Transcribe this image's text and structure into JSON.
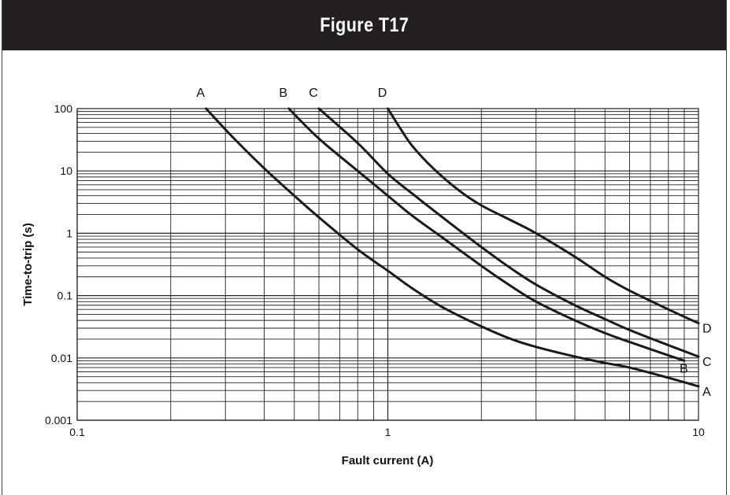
{
  "header": {
    "title": "Figure T17",
    "background": "#231f20"
  },
  "chart_data": {
    "type": "line",
    "xscale": "log",
    "yscale": "log",
    "xlim": [
      0.1,
      10
    ],
    "ylim": [
      0.001,
      100
    ],
    "xlabel": "Fault current (A)",
    "ylabel": "Time-to-trip (s)",
    "x_ticks": [
      0.1,
      1,
      10
    ],
    "x_tick_labels": [
      "0.1",
      "1",
      "10"
    ],
    "y_ticks": [
      0.001,
      0.01,
      0.1,
      1,
      10,
      100
    ],
    "y_tick_labels": [
      "0.001",
      "0.01",
      "0.1",
      "1",
      "10",
      "100"
    ],
    "grid": true,
    "series": [
      {
        "name": "A",
        "x": [
          0.26,
          0.32,
          0.4,
          0.5,
          0.6,
          0.8,
          1.0,
          1.2,
          1.5,
          2.0,
          2.5,
          3,
          4,
          5,
          6,
          8,
          10
        ],
        "y": [
          100,
          33,
          11,
          4,
          1.8,
          0.55,
          0.25,
          0.13,
          0.065,
          0.032,
          0.02,
          0.015,
          0.0105,
          0.0083,
          0.007,
          0.0048,
          0.0035
        ]
      },
      {
        "name": "B",
        "x": [
          0.48,
          0.6,
          0.8,
          1.0,
          1.2,
          1.5,
          2.0,
          2.5,
          3,
          4,
          5,
          6,
          8,
          9
        ],
        "y": [
          100,
          33,
          10,
          4,
          1.9,
          0.85,
          0.3,
          0.14,
          0.08,
          0.04,
          0.025,
          0.018,
          0.011,
          0.009
        ]
      },
      {
        "name": "C",
        "x": [
          0.6,
          0.8,
          1.0,
          1.2,
          1.5,
          2.0,
          2.5,
          3,
          4,
          5,
          6,
          8,
          10
        ],
        "y": [
          100,
          28,
          9,
          4.3,
          1.8,
          0.6,
          0.27,
          0.15,
          0.07,
          0.042,
          0.028,
          0.016,
          0.0105
        ]
      },
      {
        "name": "D",
        "x": [
          1.0,
          1.1,
          1.2,
          1.4,
          1.7,
          2.0,
          2.5,
          3,
          4,
          5,
          6,
          8,
          10
        ],
        "y": [
          100,
          47,
          25,
          11,
          4.8,
          2.8,
          1.6,
          1.0,
          0.42,
          0.2,
          0.12,
          0.06,
          0.036
        ]
      }
    ],
    "curve_labels_top": [
      "A",
      "B",
      "C",
      "D"
    ],
    "curve_labels_right": [
      "D",
      "C",
      "B",
      "A"
    ]
  }
}
